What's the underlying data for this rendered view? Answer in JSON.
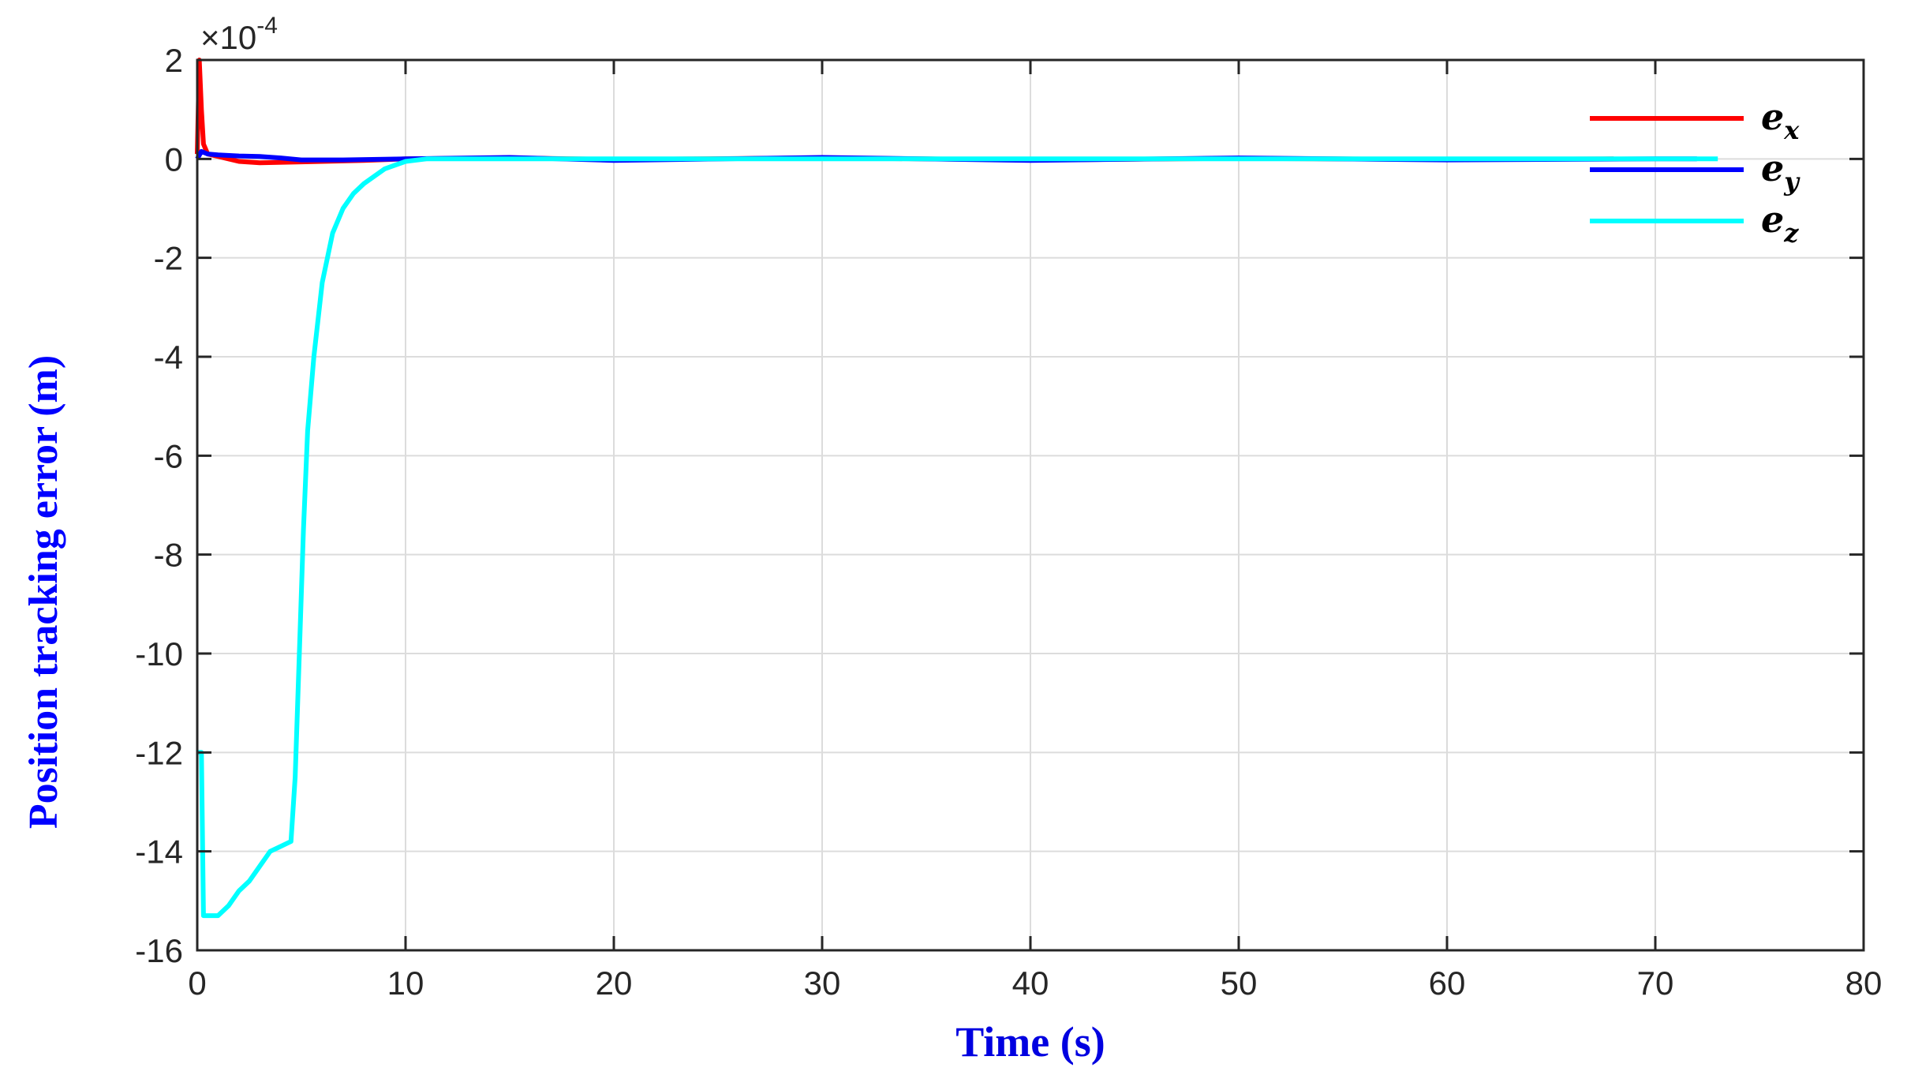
{
  "chart_data": {
    "type": "line",
    "xlabel": "Time (s)",
    "ylabel": "Position tracking error (m)",
    "exponent_label": "×10",
    "exponent_power": "-4",
    "xlim": [
      0,
      80
    ],
    "ylim": [
      -16,
      2
    ],
    "xticks": [
      "0",
      "10",
      "20",
      "30",
      "40",
      "50",
      "60",
      "70",
      "80"
    ],
    "yticks": [
      "2",
      "0",
      "-2",
      "-4",
      "-6",
      "-8",
      "-10",
      "-12",
      "-14",
      "-16"
    ],
    "grid": true,
    "legend_placement": "top-right",
    "series": [
      {
        "name": "e",
        "subscript": "x",
        "color": "#ff0000",
        "x": [
          0,
          0.1,
          0.2,
          0.3,
          0.5,
          1.0,
          1.5,
          2.0,
          3.0,
          5.0,
          8.0,
          10.0,
          15.0,
          20.0,
          30.0,
          40.0,
          50.0,
          60.0,
          68.0
        ],
        "y": [
          0.1,
          2.0,
          1.0,
          0.3,
          0.1,
          0.05,
          0.0,
          -0.05,
          -0.08,
          -0.06,
          -0.03,
          0.0,
          0.02,
          -0.01,
          0.02,
          -0.02,
          0.01,
          -0.01,
          0.0
        ]
      },
      {
        "name": "e",
        "subscript": "y",
        "color": "#0000ff",
        "x": [
          0,
          0.2,
          0.5,
          1.0,
          2.0,
          3.0,
          4.0,
          5.0,
          7.0,
          10.0,
          15.0,
          20.0,
          30.0,
          40.0,
          50.0,
          60.0,
          70.0,
          72.0
        ],
        "y": [
          0.0,
          0.15,
          0.1,
          0.08,
          0.06,
          0.05,
          0.02,
          -0.02,
          -0.02,
          0.0,
          0.03,
          -0.03,
          0.03,
          -0.03,
          0.02,
          -0.02,
          0.0,
          0.0
        ]
      },
      {
        "name": "e",
        "subscript": "z",
        "color": "#00ffff",
        "x": [
          0,
          0.2,
          0.3,
          0.6,
          1.0,
          1.5,
          2.0,
          2.5,
          3.0,
          3.5,
          4.0,
          4.5,
          4.7,
          4.9,
          5.1,
          5.3,
          5.6,
          6.0,
          6.5,
          7.0,
          7.5,
          8.0,
          8.5,
          9.0,
          10.0,
          11.0,
          12.0,
          20.0,
          30.0,
          40.0,
          50.0,
          60.0,
          70.0,
          73.0
        ],
        "y": [
          -12.0,
          -12.0,
          -15.3,
          -15.3,
          -15.3,
          -15.1,
          -14.8,
          -14.6,
          -14.3,
          -14.0,
          -13.9,
          -13.8,
          -12.5,
          -10.0,
          -7.5,
          -5.5,
          -4.0,
          -2.5,
          -1.5,
          -1.0,
          -0.7,
          -0.5,
          -0.35,
          -0.2,
          -0.05,
          0.0,
          0.0,
          0.0,
          0.0,
          0.0,
          0.0,
          0.0,
          0.0,
          0.0
        ]
      }
    ]
  }
}
